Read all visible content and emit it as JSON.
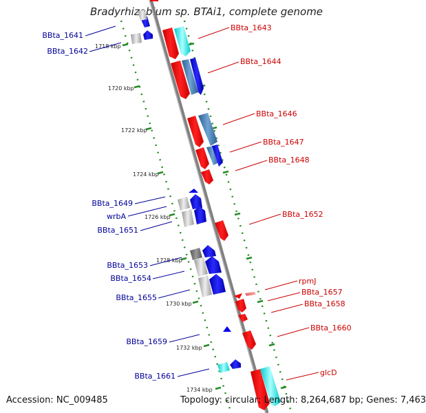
{
  "title": "Bradyrhizobium sp. BTAi1, complete genome",
  "footer": {
    "accession": "Accession: NC_009485",
    "stats": "Topology: circular; Length: 8,264,687 bp; Genes: 7,463"
  },
  "colors": {
    "forward_label": "#cc0000",
    "reverse_label": "#000099",
    "backbone": "#808080",
    "ruler": "#228B22"
  },
  "scale_labels": [
    "1718 kbp",
    "1720 kbp",
    "1722 kbp",
    "1724 kbp",
    "1726 kbp",
    "1728 kbp",
    "1730 kbp",
    "1732 kbp",
    "1734 kbp"
  ],
  "forward_genes": [
    "BBta_1643",
    "BBta_1644",
    "BBta_1646",
    "BBta_1647",
    "BBta_1648",
    "BBta_1652",
    "rpmJ",
    "BBta_1657",
    "BBta_1658",
    "BBta_1660",
    "glcD"
  ],
  "reverse_genes": [
    "BBta_1641",
    "BBta_1642",
    "BBta_1649",
    "wrbA",
    "BBta_1651",
    "BBta_1653",
    "BBta_1654",
    "BBta_1655",
    "BBta_1659",
    "BBta_1661"
  ]
}
